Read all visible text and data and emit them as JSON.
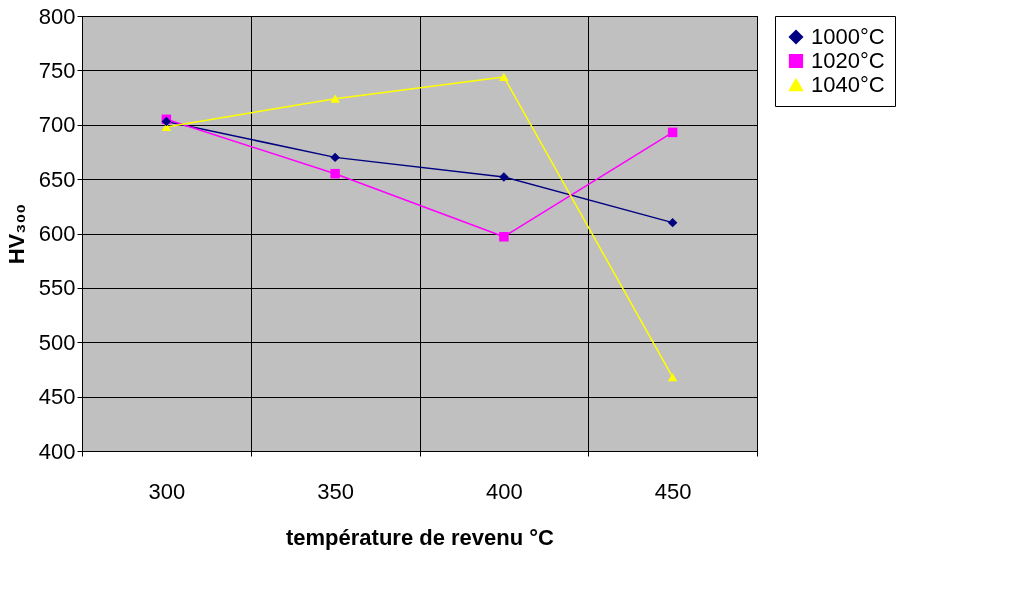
{
  "chart_data": {
    "type": "line",
    "xlabel": "température de revenu °C",
    "ylabel": "HV₃₀₀",
    "categories": [
      "300",
      "350",
      "400",
      "450"
    ],
    "series": [
      {
        "name": "1000°C",
        "color": "#000080",
        "marker": "diamond",
        "values": [
          703,
          670,
          652,
          610
        ]
      },
      {
        "name": "1020°C",
        "color": "#ff00ff",
        "marker": "square",
        "values": [
          705,
          655,
          597,
          693
        ]
      },
      {
        "name": "1040°C",
        "color": "#ffff00",
        "marker": "triangle",
        "values": [
          698,
          724,
          744,
          468
        ]
      }
    ],
    "ylim": [
      400,
      800
    ],
    "yticks": [
      400,
      450,
      500,
      550,
      600,
      650,
      700,
      750,
      800
    ],
    "grid": true,
    "legend": "right"
  }
}
